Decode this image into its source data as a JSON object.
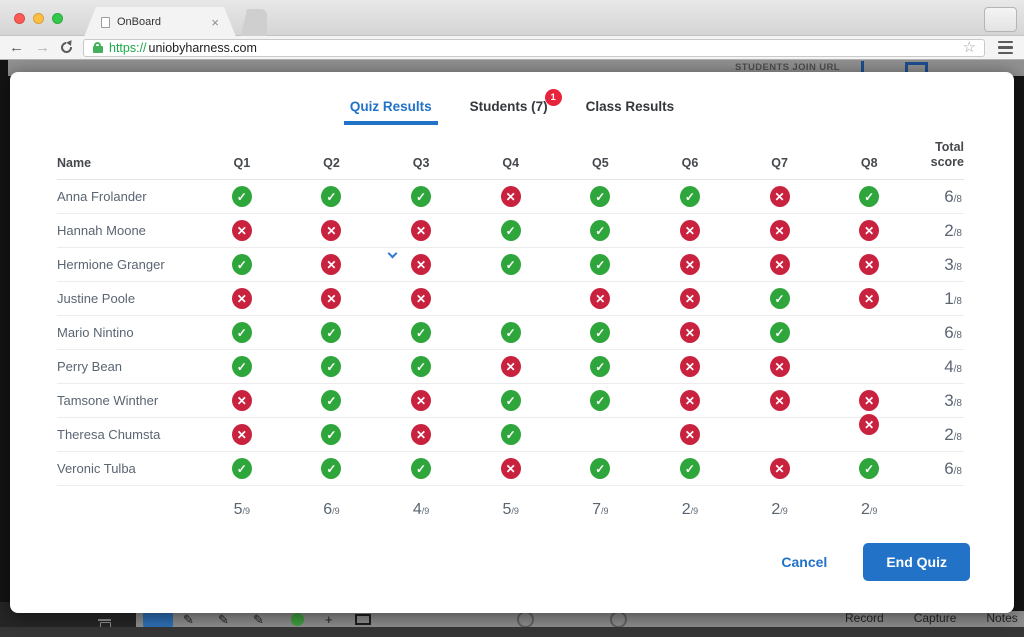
{
  "browser": {
    "tab_title": "OnBoard",
    "url_scheme": "https://",
    "url_host": "uniobyharness.com"
  },
  "background_page": {
    "header_label": "STUDENTS JOIN URL",
    "toolbar_labels": [
      "Record",
      "Capture",
      "Notes"
    ]
  },
  "modal": {
    "tabs": [
      {
        "label": "Quiz Results",
        "active": true,
        "badge": ""
      },
      {
        "label": "Students (7)",
        "active": false,
        "badge": "1"
      },
      {
        "label": "Class Results",
        "active": false,
        "badge": ""
      }
    ],
    "table": {
      "name_header": "Name",
      "question_headers": [
        "Q1",
        "Q2",
        "Q3",
        "Q4",
        "Q5",
        "Q6",
        "Q7",
        "Q8"
      ],
      "total_header": "Total score",
      "score_denominator": "/8",
      "totals_denominator": "/9",
      "rows": [
        {
          "name": "Anna Frolander",
          "answers": [
            "correct",
            "correct",
            "correct",
            "wrong",
            "correct",
            "correct",
            "wrong",
            "correct"
          ],
          "score": "6"
        },
        {
          "name": "Hannah Moone",
          "answers": [
            "wrong",
            "wrong",
            "wrong",
            "correct",
            "correct",
            "wrong",
            "wrong",
            "wrong"
          ],
          "score": "2"
        },
        {
          "name": "Hermione Granger",
          "answers": [
            "correct",
            "wrong",
            "wrong",
            "correct",
            "correct",
            "wrong",
            "wrong",
            "wrong"
          ],
          "score": "3",
          "chevron_q": 3
        },
        {
          "name": "Justine Poole",
          "answers": [
            "wrong",
            "wrong",
            "wrong",
            "none",
            "wrong",
            "wrong",
            "correct",
            "wrong"
          ],
          "score": "1"
        },
        {
          "name": "Mario Nintino",
          "answers": [
            "correct",
            "correct",
            "correct",
            "correct",
            "correct",
            "wrong",
            "correct",
            "none"
          ],
          "score": "6"
        },
        {
          "name": "Perry Bean",
          "answers": [
            "correct",
            "correct",
            "correct",
            "wrong",
            "correct",
            "wrong",
            "wrong",
            "none"
          ],
          "score": "4"
        },
        {
          "name": "Tamsone Winther",
          "answers": [
            "wrong",
            "correct",
            "wrong",
            "correct",
            "correct",
            "wrong",
            "wrong",
            "wrong"
          ],
          "score": "3"
        },
        {
          "name": "Theresa Chumsta",
          "answers": [
            "wrong",
            "correct",
            "wrong",
            "correct",
            "none",
            "wrong",
            "none",
            "wrong"
          ],
          "score": "2",
          "q8_raised": true
        },
        {
          "name": "Veronic Tulba",
          "answers": [
            "correct",
            "correct",
            "correct",
            "wrong",
            "correct",
            "correct",
            "wrong",
            "correct"
          ],
          "score": "6"
        }
      ],
      "column_totals": [
        "5",
        "6",
        "4",
        "5",
        "7",
        "2",
        "2",
        "2"
      ]
    },
    "cancel_label": "Cancel",
    "end_quiz_label": "End Quiz"
  },
  "colors": {
    "accent_blue": "#2272c8",
    "correct_green": "#2fa63c",
    "wrong_red": "#c9223f",
    "badge_red": "#e8243d",
    "https_green": "#1ba94c"
  }
}
